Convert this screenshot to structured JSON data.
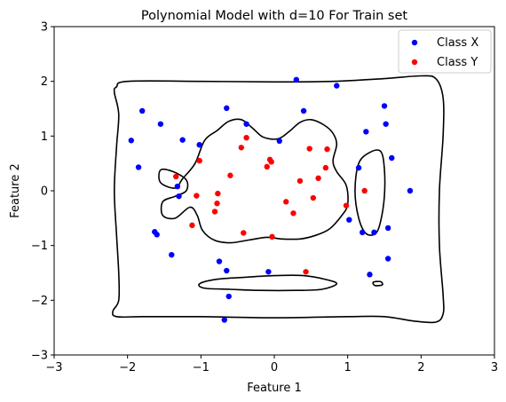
{
  "chart_data": {
    "type": "scatter",
    "title": "Polynomial Model with d=10 For Train set",
    "xlabel": "Feature 1",
    "ylabel": "Feature 2",
    "xlim": [
      -3,
      3
    ],
    "ylim": [
      -3,
      3
    ],
    "xticks": [
      -3,
      -2,
      -1,
      0,
      1,
      2,
      3
    ],
    "yticks": [
      -3,
      -2,
      -1,
      0,
      1,
      2,
      3
    ],
    "xtick_labels": [
      "−3",
      "−2",
      "−1",
      "0",
      "1",
      "2",
      "3"
    ],
    "ytick_labels": [
      "−3",
      "−2",
      "−1",
      "0",
      "1",
      "2",
      "3"
    ],
    "grid": false,
    "legend_position": "top-right",
    "series": [
      {
        "name": "Class X",
        "color": "#0000ff",
        "points": [
          [
            0.3,
            2.03
          ],
          [
            0.85,
            1.92
          ],
          [
            -1.8,
            1.46
          ],
          [
            -0.65,
            1.51
          ],
          [
            0.4,
            1.46
          ],
          [
            1.5,
            1.55
          ],
          [
            -1.55,
            1.22
          ],
          [
            -0.38,
            1.22
          ],
          [
            1.52,
            1.22
          ],
          [
            1.25,
            1.08
          ],
          [
            -1.95,
            0.92
          ],
          [
            -1.25,
            0.93
          ],
          [
            -1.02,
            0.84
          ],
          [
            0.07,
            0.91
          ],
          [
            1.6,
            0.6
          ],
          [
            -1.85,
            0.43
          ],
          [
            1.15,
            0.42
          ],
          [
            1.85,
            0.0
          ],
          [
            -1.32,
            0.08
          ],
          [
            -1.3,
            -0.1
          ],
          [
            1.02,
            -0.53
          ],
          [
            -1.63,
            -0.75
          ],
          [
            -1.6,
            -0.8
          ],
          [
            1.2,
            -0.76
          ],
          [
            1.36,
            -0.76
          ],
          [
            1.55,
            -0.68
          ],
          [
            -1.4,
            -1.17
          ],
          [
            -0.75,
            -1.29
          ],
          [
            1.55,
            -1.24
          ],
          [
            -0.65,
            -1.46
          ],
          [
            -0.08,
            -1.48
          ],
          [
            1.3,
            -1.53
          ],
          [
            -0.62,
            -1.93
          ],
          [
            -0.68,
            -2.36
          ]
        ]
      },
      {
        "name": "Class Y",
        "color": "#ff0000",
        "points": [
          [
            -0.38,
            0.97
          ],
          [
            -0.45,
            0.79
          ],
          [
            0.48,
            0.77
          ],
          [
            0.72,
            0.76
          ],
          [
            -0.06,
            0.57
          ],
          [
            -1.02,
            0.55
          ],
          [
            -0.04,
            0.53
          ],
          [
            -0.1,
            0.44
          ],
          [
            0.7,
            0.42
          ],
          [
            -0.6,
            0.28
          ],
          [
            -1.34,
            0.26
          ],
          [
            0.6,
            0.23
          ],
          [
            0.35,
            0.18
          ],
          [
            1.23,
            0.0
          ],
          [
            -0.77,
            -0.05
          ],
          [
            -1.06,
            -0.09
          ],
          [
            0.53,
            -0.13
          ],
          [
            0.16,
            -0.2
          ],
          [
            -0.78,
            -0.23
          ],
          [
            0.98,
            -0.27
          ],
          [
            -0.81,
            -0.38
          ],
          [
            0.26,
            -0.41
          ],
          [
            -1.12,
            -0.63
          ],
          [
            -0.42,
            -0.77
          ],
          [
            -0.03,
            -0.84
          ],
          [
            0.43,
            -1.48
          ]
        ]
      }
    ],
    "decision_boundary": [
      [
        [
          -2.15,
          1.9
        ],
        [
          -2.0,
          2.0
        ],
        [
          -1.0,
          2.0
        ],
        [
          0.0,
          1.99
        ],
        [
          0.8,
          2.0
        ],
        [
          1.5,
          2.05
        ],
        [
          2.0,
          2.1
        ],
        [
          2.2,
          2.05
        ],
        [
          2.3,
          1.7
        ],
        [
          2.3,
          1.0
        ],
        [
          2.25,
          0.0
        ],
        [
          2.25,
          -1.0
        ],
        [
          2.3,
          -1.9
        ],
        [
          2.3,
          -2.25
        ],
        [
          2.2,
          -2.4
        ],
        [
          1.9,
          -2.38
        ],
        [
          1.5,
          -2.3
        ],
        [
          1.0,
          -2.3
        ],
        [
          0.0,
          -2.32
        ],
        [
          -1.0,
          -2.3
        ],
        [
          -1.8,
          -2.3
        ],
        [
          -2.15,
          -2.3
        ],
        [
          -2.2,
          -2.2
        ],
        [
          -2.12,
          -2.0
        ],
        [
          -2.12,
          -1.5
        ],
        [
          -2.15,
          -0.8
        ],
        [
          -2.18,
          0.0
        ],
        [
          -2.15,
          0.8
        ],
        [
          -2.12,
          1.4
        ],
        [
          -2.18,
          1.8
        ],
        [
          -2.15,
          1.9
        ]
      ],
      [
        [
          -0.95,
          0.92
        ],
        [
          -0.78,
          1.1
        ],
        [
          -0.62,
          1.27
        ],
        [
          -0.45,
          1.3
        ],
        [
          -0.3,
          1.15
        ],
        [
          -0.15,
          0.98
        ],
        [
          0.05,
          0.95
        ],
        [
          0.2,
          1.08
        ],
        [
          0.35,
          1.25
        ],
        [
          0.5,
          1.3
        ],
        [
          0.68,
          1.2
        ],
        [
          0.8,
          1.05
        ],
        [
          0.85,
          0.85
        ],
        [
          0.8,
          0.55
        ],
        [
          0.85,
          0.35
        ],
        [
          0.98,
          0.1
        ],
        [
          1.0,
          -0.25
        ],
        [
          0.92,
          -0.45
        ],
        [
          0.75,
          -0.7
        ],
        [
          0.55,
          -0.82
        ],
        [
          0.35,
          -0.88
        ],
        [
          0.1,
          -0.88
        ],
        [
          -0.1,
          -0.85
        ],
        [
          -0.35,
          -0.9
        ],
        [
          -0.6,
          -0.95
        ],
        [
          -0.82,
          -0.9
        ],
        [
          -0.98,
          -0.72
        ],
        [
          -1.05,
          -0.45
        ],
        [
          -1.15,
          -0.3
        ],
        [
          -1.35,
          -0.5
        ],
        [
          -1.52,
          -0.45
        ],
        [
          -1.52,
          -0.2
        ],
        [
          -1.35,
          -0.1
        ],
        [
          -1.2,
          0.0
        ],
        [
          -1.2,
          0.2
        ],
        [
          -1.38,
          0.35
        ],
        [
          -1.55,
          0.38
        ],
        [
          -1.55,
          0.15
        ],
        [
          -1.35,
          0.05
        ],
        [
          -1.25,
          0.22
        ],
        [
          -1.08,
          0.5
        ],
        [
          -0.95,
          0.92
        ]
      ],
      [
        [
          1.15,
          0.5
        ],
        [
          1.3,
          0.7
        ],
        [
          1.45,
          0.72
        ],
        [
          1.5,
          0.4
        ],
        [
          1.5,
          -0.1
        ],
        [
          1.45,
          -0.55
        ],
        [
          1.38,
          -0.78
        ],
        [
          1.25,
          -0.78
        ],
        [
          1.15,
          -0.5
        ],
        [
          1.1,
          0.0
        ],
        [
          1.15,
          0.5
        ]
      ],
      [
        [
          -1.02,
          -1.7
        ],
        [
          -0.8,
          -1.62
        ],
        [
          -0.4,
          -1.58
        ],
        [
          0.0,
          -1.55
        ],
        [
          0.4,
          -1.55
        ],
        [
          0.7,
          -1.62
        ],
        [
          0.85,
          -1.7
        ],
        [
          0.65,
          -1.8
        ],
        [
          0.3,
          -1.82
        ],
        [
          -0.2,
          -1.82
        ],
        [
          -0.6,
          -1.8
        ],
        [
          -0.95,
          -1.78
        ],
        [
          -1.02,
          -1.7
        ]
      ],
      [
        [
          1.35,
          -1.67
        ],
        [
          1.45,
          -1.66
        ],
        [
          1.47,
          -1.72
        ],
        [
          1.37,
          -1.73
        ],
        [
          1.35,
          -1.67
        ]
      ]
    ]
  }
}
